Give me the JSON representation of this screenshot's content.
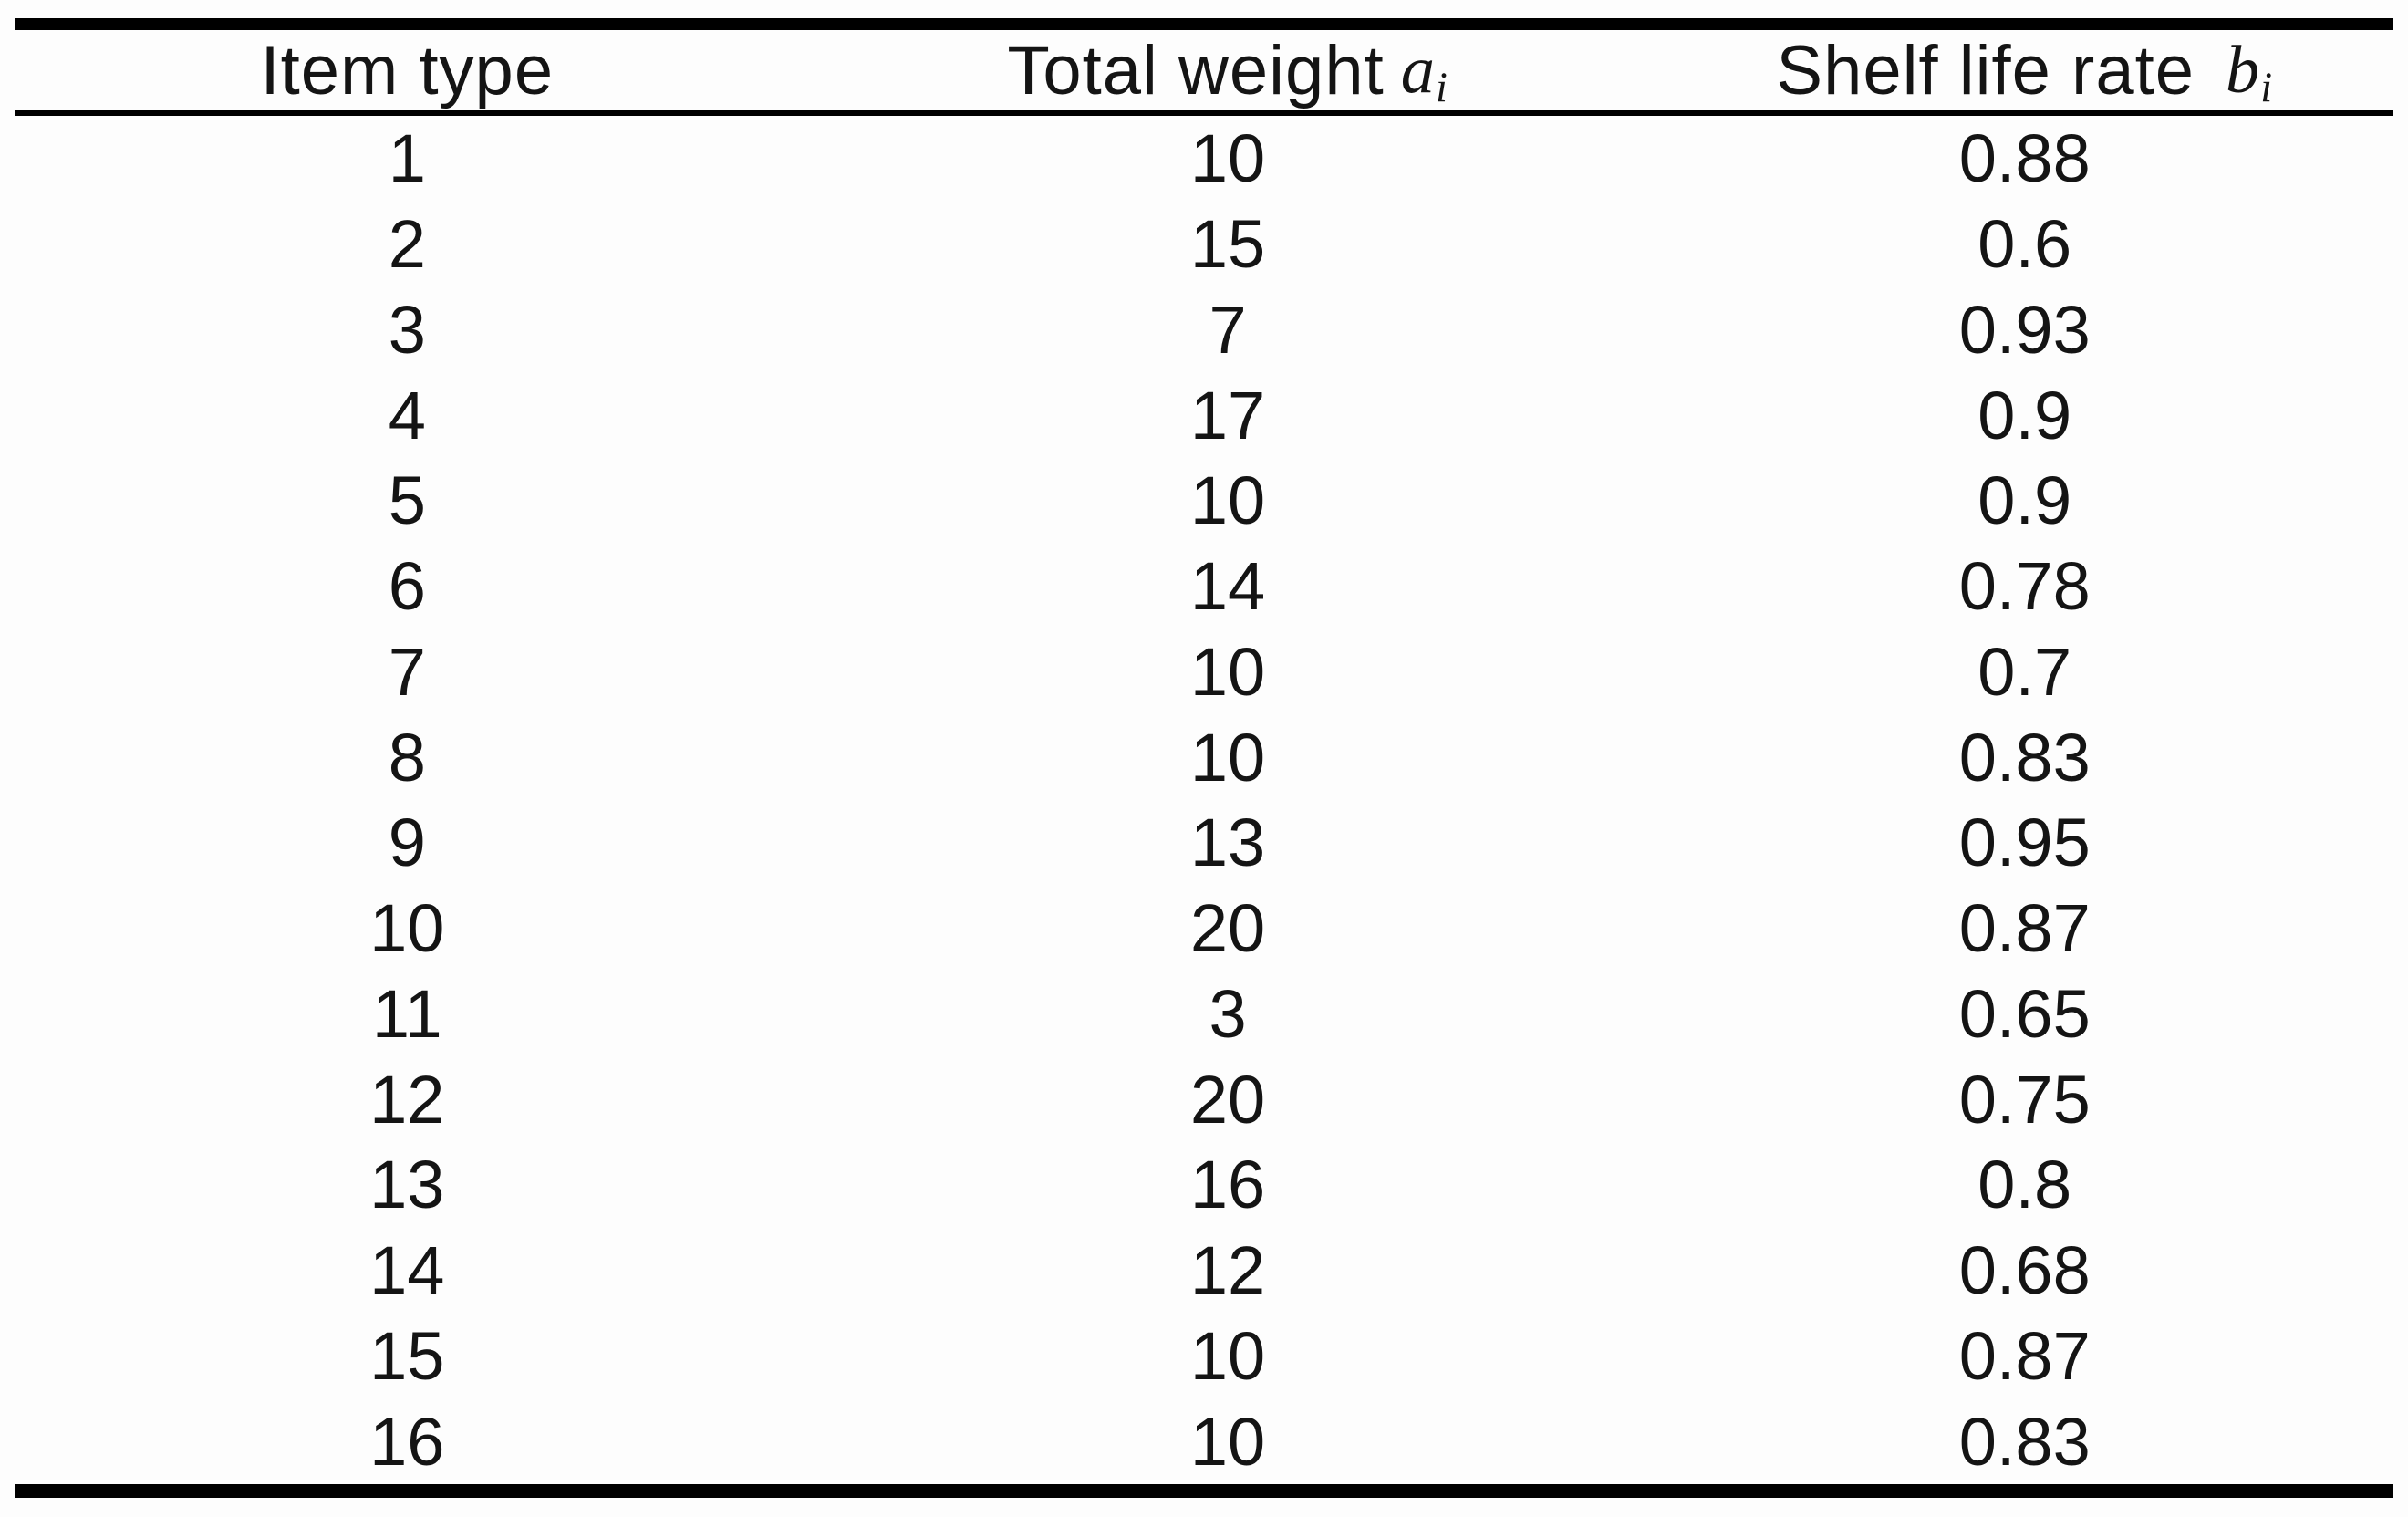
{
  "table": {
    "headers": [
      {
        "label": "Item type",
        "math": "",
        "sub": ""
      },
      {
        "label": "Total weight",
        "math": "a",
        "sub": "i"
      },
      {
        "label": "Shelf life rate",
        "math": "b",
        "sub": "i"
      }
    ],
    "rows": [
      [
        "1",
        "10",
        "0.88"
      ],
      [
        "2",
        "15",
        "0.6"
      ],
      [
        "3",
        "7",
        "0.93"
      ],
      [
        "4",
        "17",
        "0.9"
      ],
      [
        "5",
        "10",
        "0.9"
      ],
      [
        "6",
        "14",
        "0.78"
      ],
      [
        "7",
        "10",
        "0.7"
      ],
      [
        "8",
        "10",
        "0.83"
      ],
      [
        "9",
        "13",
        "0.95"
      ],
      [
        "10",
        "20",
        "0.87"
      ],
      [
        "11",
        "3",
        "0.65"
      ],
      [
        "12",
        "20",
        "0.75"
      ],
      [
        "13",
        "16",
        "0.8"
      ],
      [
        "14",
        "12",
        "0.68"
      ],
      [
        "15",
        "10",
        "0.87"
      ],
      [
        "16",
        "10",
        "0.83"
      ]
    ]
  },
  "chart_data": {
    "type": "table",
    "columns": [
      "Item type",
      "Total weight a_i",
      "Shelf life rate b_i"
    ],
    "item_type": [
      1,
      2,
      3,
      4,
      5,
      6,
      7,
      8,
      9,
      10,
      11,
      12,
      13,
      14,
      15,
      16
    ],
    "total_weight_a_i": [
      10,
      15,
      7,
      17,
      10,
      14,
      10,
      10,
      13,
      20,
      3,
      20,
      16,
      12,
      10,
      10
    ],
    "shelf_life_rate_b_i": [
      0.88,
      0.6,
      0.93,
      0.9,
      0.9,
      0.78,
      0.7,
      0.83,
      0.95,
      0.87,
      0.65,
      0.75,
      0.8,
      0.68,
      0.87,
      0.83
    ]
  },
  "colors": {
    "background": "#fdfdfd",
    "text": "#141414",
    "rule": "#000000"
  }
}
